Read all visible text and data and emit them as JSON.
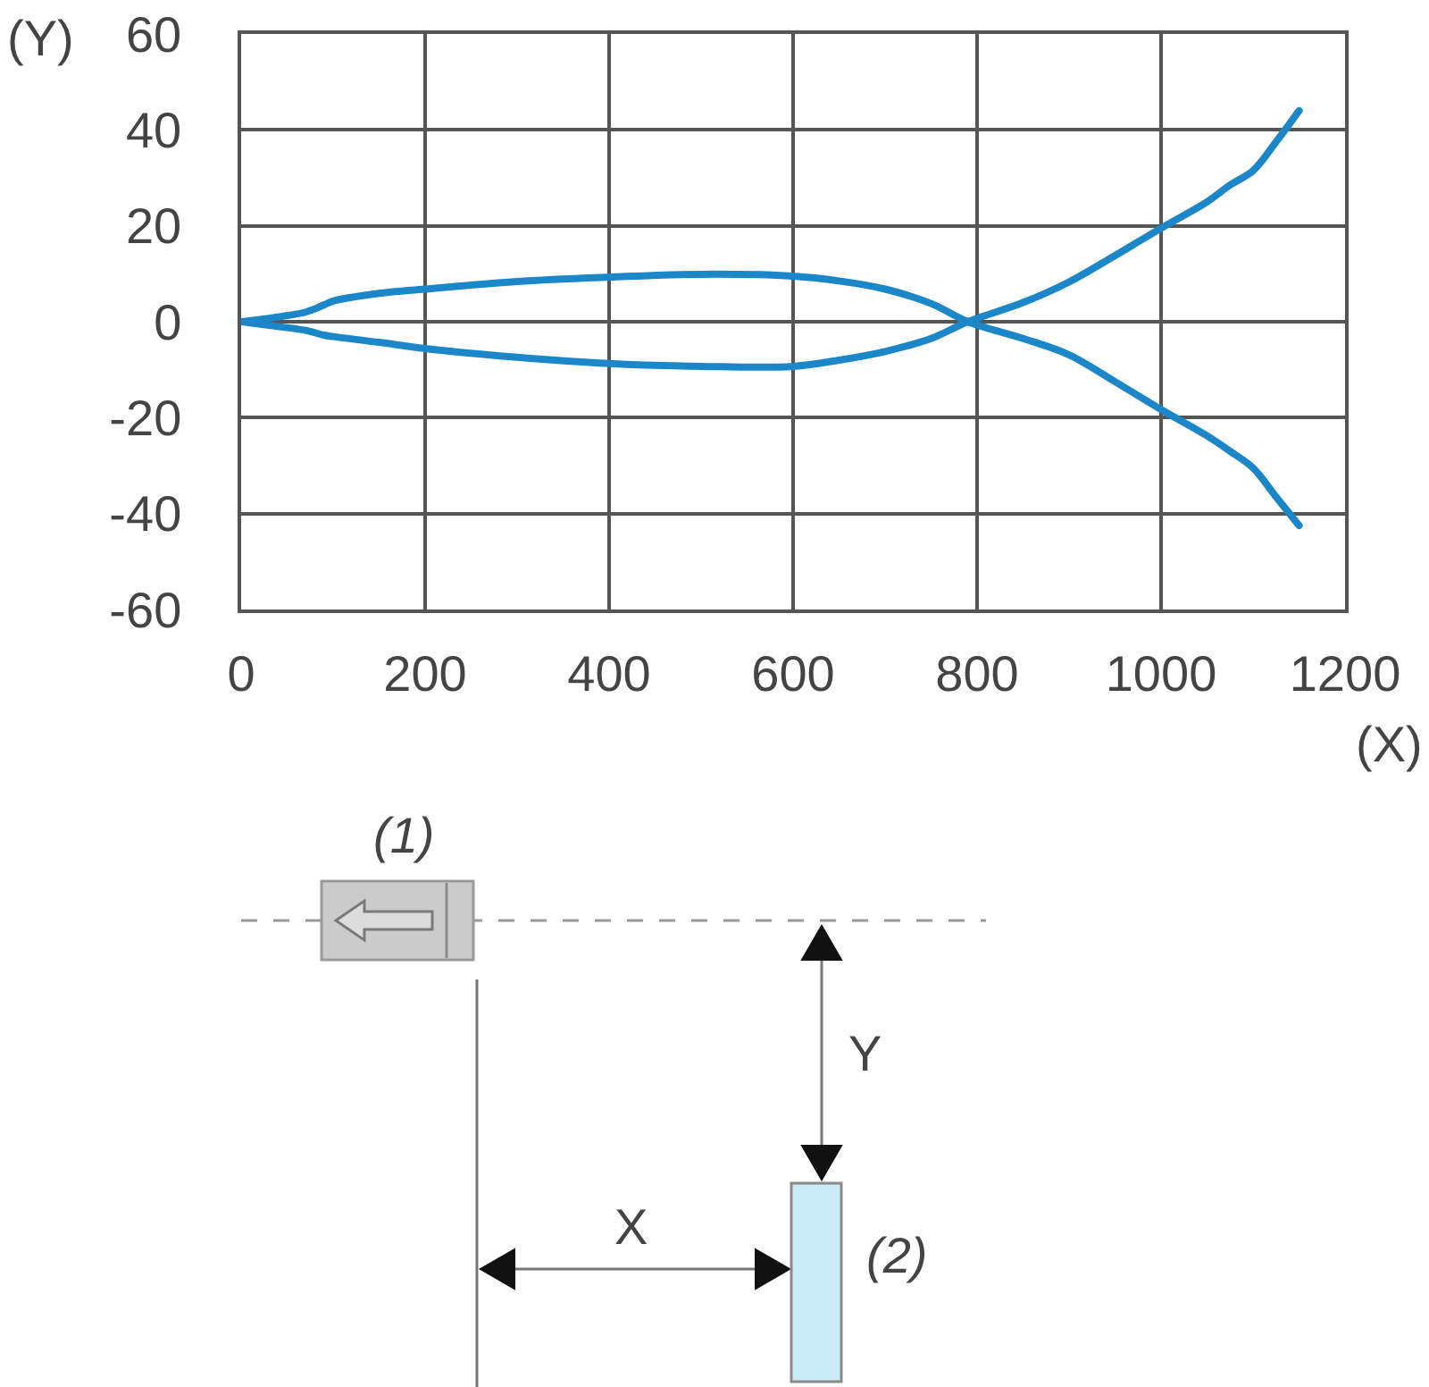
{
  "chart_data": {
    "type": "line",
    "xlabel": "(X)",
    "ylabel": "(Y)",
    "x": [
      0,
      40,
      70,
      90,
      100,
      150,
      200,
      300,
      400,
      500,
      600,
      650,
      700,
      750,
      790,
      850,
      900,
      950,
      1000,
      1050,
      1075,
      1100,
      1125,
      1150
    ],
    "series": [
      {
        "color": "#1b87c9",
        "values": [
          0,
          1,
          2,
          3.5,
          4.3,
          5.9,
          6.8,
          8.4,
          9.3,
          9.9,
          9.5,
          8.5,
          6.8,
          3.8,
          0,
          -3.5,
          -6.9,
          -12.5,
          -18.3,
          -23.8,
          -27,
          -30.5,
          -36.5,
          -42.5
        ]
      },
      {
        "color": "#1b87c9",
        "values": [
          0,
          -1,
          -1.8,
          -2.8,
          -3.1,
          -4.3,
          -5.6,
          -7.4,
          -8.7,
          -9.3,
          -9.3,
          -8,
          -6.2,
          -3.5,
          0,
          4,
          8.3,
          13.8,
          19.5,
          25,
          28.5,
          31.5,
          37.5,
          44
        ]
      }
    ],
    "xlim": [
      0,
      1200
    ],
    "ylim": [
      -60,
      60
    ],
    "xticks": [
      0,
      200,
      400,
      600,
      800,
      1000,
      1200
    ],
    "yticks": [
      -60,
      -40,
      -20,
      0,
      20,
      40,
      60
    ],
    "grid": true,
    "marker": "none",
    "line_style": "solid",
    "annotations": [
      "(1)",
      "(2)",
      "X",
      "Y"
    ]
  }
}
